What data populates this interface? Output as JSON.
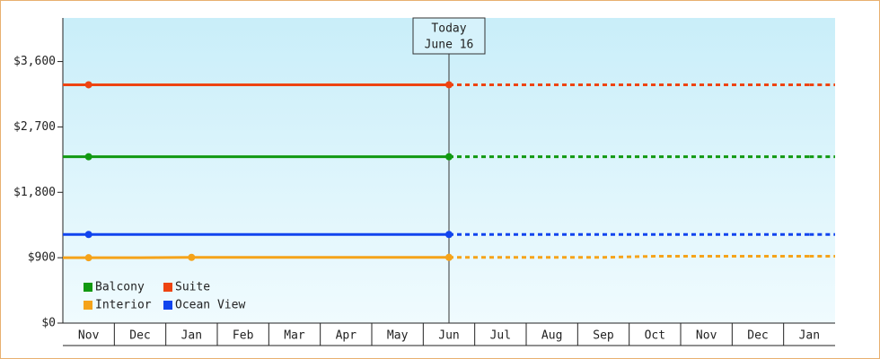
{
  "chart_data": {
    "type": "line",
    "categories": [
      "Nov",
      "Dec",
      "Jan",
      "Feb",
      "Mar",
      "Apr",
      "May",
      "Jun",
      "Jul",
      "Aug",
      "Sep",
      "Oct",
      "Nov",
      "Dec",
      "Jan"
    ],
    "series": [
      {
        "name": "Balcony",
        "color": "#119911",
        "values": [
          2290,
          2290,
          2290,
          2290,
          2290,
          2290,
          2290,
          2290,
          2290,
          2290,
          2290,
          2290,
          2290,
          2290,
          2290
        ]
      },
      {
        "name": "Suite",
        "color": "#ee4411",
        "values": [
          3280,
          3280,
          3280,
          3280,
          3280,
          3280,
          3280,
          3280,
          3280,
          3280,
          3280,
          3280,
          3280,
          3280,
          3280
        ]
      },
      {
        "name": "Interior",
        "color": "#f5a31a",
        "values": [
          900,
          900,
          905,
          905,
          905,
          905,
          905,
          905,
          905,
          905,
          905,
          920,
          920,
          920,
          920
        ]
      },
      {
        "name": "Ocean View",
        "color": "#1144ee",
        "values": [
          1220,
          1220,
          1220,
          1220,
          1220,
          1220,
          1220,
          1220,
          1220,
          1220,
          1220,
          1220,
          1220,
          1220,
          1220
        ]
      }
    ],
    "ylim": [
      0,
      4200
    ],
    "yticks": [
      {
        "value": 0,
        "label": "$0"
      },
      {
        "value": 900,
        "label": "$900"
      },
      {
        "value": 1800,
        "label": "$1,800"
      },
      {
        "value": 2700,
        "label": "$2,700"
      },
      {
        "value": 3600,
        "label": "$3,600"
      }
    ],
    "today_index": 7,
    "annotation": [
      "Today",
      "June 16"
    ],
    "legend": "bottom-left"
  }
}
